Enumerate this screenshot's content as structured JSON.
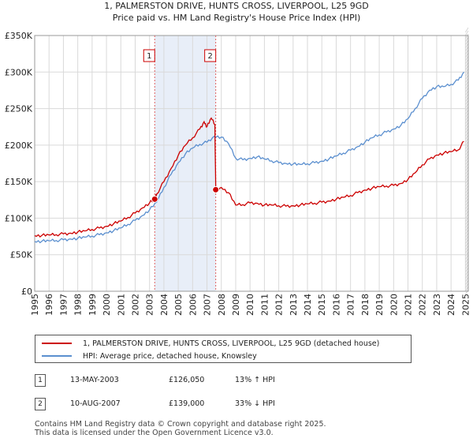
{
  "chart_data": {
    "type": "line",
    "title": "1, PALMERSTON DRIVE, HUNTS CROSS, LIVERPOOL, L25 9GD",
    "subtitle": "Price paid vs. HM Land Registry's House Price Index (HPI)",
    "xlabel": "",
    "ylabel": "",
    "xlim": [
      1995,
      2025.2
    ],
    "ylim": [
      0,
      350000
    ],
    "grid": true,
    "x_ticks": [
      1995,
      1996,
      1997,
      1998,
      1999,
      2000,
      2001,
      2002,
      2003,
      2004,
      2005,
      2006,
      2007,
      2008,
      2009,
      2010,
      2011,
      2012,
      2013,
      2014,
      2015,
      2016,
      2017,
      2018,
      2019,
      2020,
      2021,
      2022,
      2023,
      2024,
      2025
    ],
    "x_tick_labels": [
      "1995",
      "1996",
      "1997",
      "1998",
      "1999",
      "2000",
      "2001",
      "2002",
      "2003",
      "2004",
      "2005",
      "2006",
      "2007",
      "2008",
      "2009",
      "2010",
      "2011",
      "2012",
      "2013",
      "2014",
      "2015",
      "2016",
      "2017",
      "2018",
      "2019",
      "2020",
      "2021",
      "2022",
      "2023",
      "2024",
      "2025"
    ],
    "y_ticks": [
      0,
      50000,
      100000,
      150000,
      200000,
      250000,
      300000,
      350000
    ],
    "y_tick_labels": [
      "£0",
      "£50K",
      "£100K",
      "£150K",
      "£200K",
      "£250K",
      "£300K",
      "£350K"
    ],
    "series": [
      {
        "name": "1, PALMERSTON DRIVE, HUNTS CROSS, LIVERPOOL, L25 9GD (detached house)",
        "color": "#cc0000",
        "x": [
          1995.0,
          1995.5,
          1996.0,
          1996.5,
          1997.0,
          1997.5,
          1998.0,
          1998.5,
          1999.0,
          1999.5,
          2000.0,
          2000.5,
          2001.0,
          2001.5,
          2002.0,
          2002.5,
          2003.0,
          2003.36,
          2003.5,
          2004.0,
          2004.5,
          2005.0,
          2005.5,
          2006.0,
          2006.5,
          2006.8,
          2007.0,
          2007.3,
          2007.55,
          2007.61,
          2008.0,
          2008.5,
          2009.0,
          2009.5,
          2010.0,
          2010.5,
          2011.0,
          2011.5,
          2012.0,
          2012.5,
          2013.0,
          2013.5,
          2014.0,
          2014.5,
          2015.0,
          2015.5,
          2016.0,
          2016.5,
          2017.0,
          2017.5,
          2018.0,
          2018.5,
          2019.0,
          2019.5,
          2020.0,
          2020.5,
          2021.0,
          2021.5,
          2022.0,
          2022.5,
          2023.0,
          2023.5,
          2024.0,
          2024.5,
          2024.9
        ],
        "values": [
          76000,
          76500,
          77000,
          77500,
          78500,
          79500,
          81000,
          82500,
          84500,
          86500,
          89000,
          92500,
          96000,
          101000,
          107000,
          114000,
          121000,
          126050,
          133000,
          150000,
          168000,
          186000,
          200000,
          210000,
          222000,
          232000,
          225000,
          237000,
          228000,
          139000,
          142000,
          135000,
          118000,
          118500,
          121000,
          120500,
          118000,
          118000,
          117000,
          116500,
          117000,
          118000,
          119500,
          120500,
          122000,
          123500,
          126000,
          128500,
          131000,
          135000,
          138500,
          141000,
          143000,
          144000,
          145000,
          147500,
          153000,
          162000,
          173000,
          181000,
          186500,
          189000,
          191000,
          193500,
          205000
        ]
      },
      {
        "name": "HPI: Average price, detached house, Knowsley",
        "color": "#5b8fcf",
        "x": [
          1995.0,
          1995.5,
          1996.0,
          1996.5,
          1997.0,
          1997.5,
          1998.0,
          1998.5,
          1999.0,
          1999.5,
          2000.0,
          2000.5,
          2001.0,
          2001.5,
          2002.0,
          2002.5,
          2003.0,
          2003.5,
          2004.0,
          2004.5,
          2005.0,
          2005.5,
          2006.0,
          2006.5,
          2007.0,
          2007.5,
          2008.0,
          2008.5,
          2009.0,
          2009.5,
          2010.0,
          2010.5,
          2011.0,
          2011.5,
          2012.0,
          2012.5,
          2013.0,
          2013.5,
          2014.0,
          2014.5,
          2015.0,
          2015.5,
          2016.0,
          2016.5,
          2017.0,
          2017.5,
          2018.0,
          2018.5,
          2019.0,
          2019.5,
          2020.0,
          2020.5,
          2021.0,
          2021.5,
          2022.0,
          2022.5,
          2023.0,
          2023.5,
          2024.0,
          2024.5,
          2024.9
        ],
        "values": [
          68000,
          68500,
          69000,
          69500,
          70500,
          71500,
          72500,
          74000,
          75500,
          77500,
          80000,
          83000,
          86500,
          91500,
          97000,
          103500,
          111500,
          122000,
          142000,
          160000,
          176000,
          188000,
          196000,
          201000,
          204000,
          212000,
          211000,
          202000,
          182000,
          180000,
          182000,
          184000,
          181000,
          178500,
          176000,
          175000,
          174000,
          173500,
          174500,
          176000,
          178000,
          181000,
          185000,
          189000,
          193000,
          198000,
          204000,
          210000,
          214000,
          218000,
          222000,
          227000,
          236000,
          250000,
          264000,
          275000,
          280000,
          280000,
          283000,
          289000,
          300000
        ]
      }
    ],
    "sales": [
      {
        "marker": "1",
        "x": 2003.36,
        "value": 126050
      },
      {
        "marker": "2",
        "x": 2007.61,
        "value": 139000
      }
    ],
    "shaded_period": [
      2003.36,
      2007.61
    ],
    "future_hatch_from": 2025.0
  },
  "legend": {
    "property_label": "1, PALMERSTON DRIVE, HUNTS CROSS, LIVERPOOL, L25 9GD (detached house)",
    "hpi_label": "HPI: Average price, detached house, Knowsley"
  },
  "transactions": [
    {
      "marker": "1",
      "date": "13-MAY-2003",
      "price": "£126,050",
      "hpi_change": "13% ↑ HPI"
    },
    {
      "marker": "2",
      "date": "10-AUG-2007",
      "price": "£139,000",
      "hpi_change": "33% ↓ HPI"
    }
  ],
  "footer": {
    "line1": "Contains HM Land Registry data © Crown copyright and database right 2025.",
    "line2": "This data is licensed under the Open Government Licence v3.0."
  },
  "colors": {
    "property": "#cc0000",
    "hpi": "#5b8fcf",
    "grid": "#d9d9d9",
    "shade": "#e8eef8",
    "sale_line": "#e06060"
  }
}
